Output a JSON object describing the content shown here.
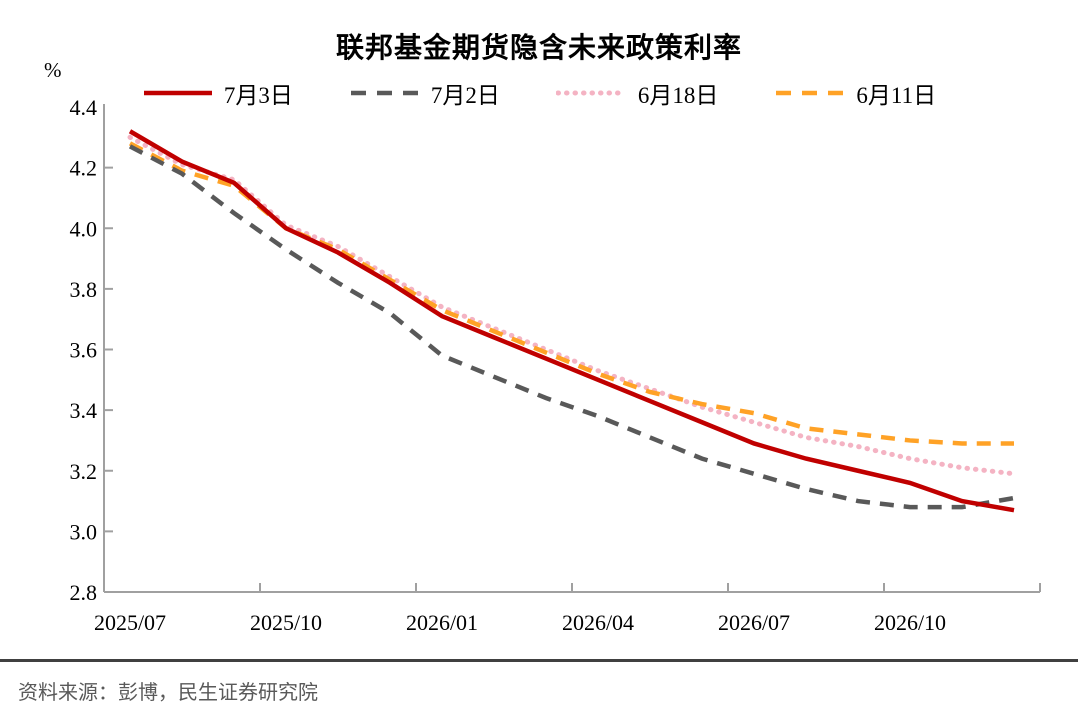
{
  "header": {
    "title": "联邦基金期货隐含未来政策利率",
    "y_unit_label": "%"
  },
  "chart_data": {
    "type": "line",
    "title": "联邦基金期货隐含未来政策利率",
    "ylabel": "%",
    "xlabel": "",
    "ylim": [
      2.8,
      4.4
    ],
    "y_ticks": [
      4.4,
      4.2,
      4.0,
      3.8,
      3.6,
      3.4,
      3.2,
      3.0,
      2.8
    ],
    "x_tick_labels": [
      "2025/07",
      "2025/10",
      "2026/01",
      "2026/04",
      "2026/07",
      "2026/10"
    ],
    "grid": false,
    "legend_position": "top",
    "axis_color": "#a0a0a0",
    "categories": [
      "2025/07",
      "2025/08",
      "2025/09",
      "2025/10",
      "2025/11",
      "2025/12",
      "2026/01",
      "2026/02",
      "2026/03",
      "2026/04",
      "2026/05",
      "2026/06",
      "2026/07",
      "2026/08",
      "2026/09",
      "2026/10",
      "2026/11",
      "2026/12"
    ],
    "series": [
      {
        "name": "7月3日",
        "color": "#c00000",
        "style": "solid",
        "values": [
          4.32,
          4.22,
          4.15,
          4.0,
          3.92,
          3.82,
          3.71,
          3.64,
          3.57,
          3.5,
          3.43,
          3.36,
          3.29,
          3.24,
          3.2,
          3.16,
          3.1,
          3.07
        ]
      },
      {
        "name": "7月2日",
        "color": "#595959",
        "style": "dash",
        "values": [
          4.27,
          4.18,
          4.05,
          3.93,
          3.82,
          3.72,
          3.58,
          3.51,
          3.44,
          3.38,
          3.31,
          3.24,
          3.19,
          3.14,
          3.1,
          3.08,
          3.08,
          3.11
        ]
      },
      {
        "name": "6月18日",
        "color": "#f4b3c3",
        "style": "dot",
        "values": [
          4.3,
          4.21,
          4.16,
          4.01,
          3.94,
          3.84,
          3.74,
          3.67,
          3.6,
          3.53,
          3.47,
          3.41,
          3.36,
          3.31,
          3.28,
          3.24,
          3.21,
          3.19
        ]
      },
      {
        "name": "6月11日",
        "color": "#ffa226",
        "style": "dash",
        "values": [
          4.28,
          4.19,
          4.14,
          4.0,
          3.93,
          3.83,
          3.73,
          3.66,
          3.59,
          3.52,
          3.46,
          3.42,
          3.39,
          3.34,
          3.32,
          3.3,
          3.29,
          3.29
        ]
      }
    ]
  },
  "footer": {
    "source": "资料来源：彭博，民生证券研究院"
  }
}
